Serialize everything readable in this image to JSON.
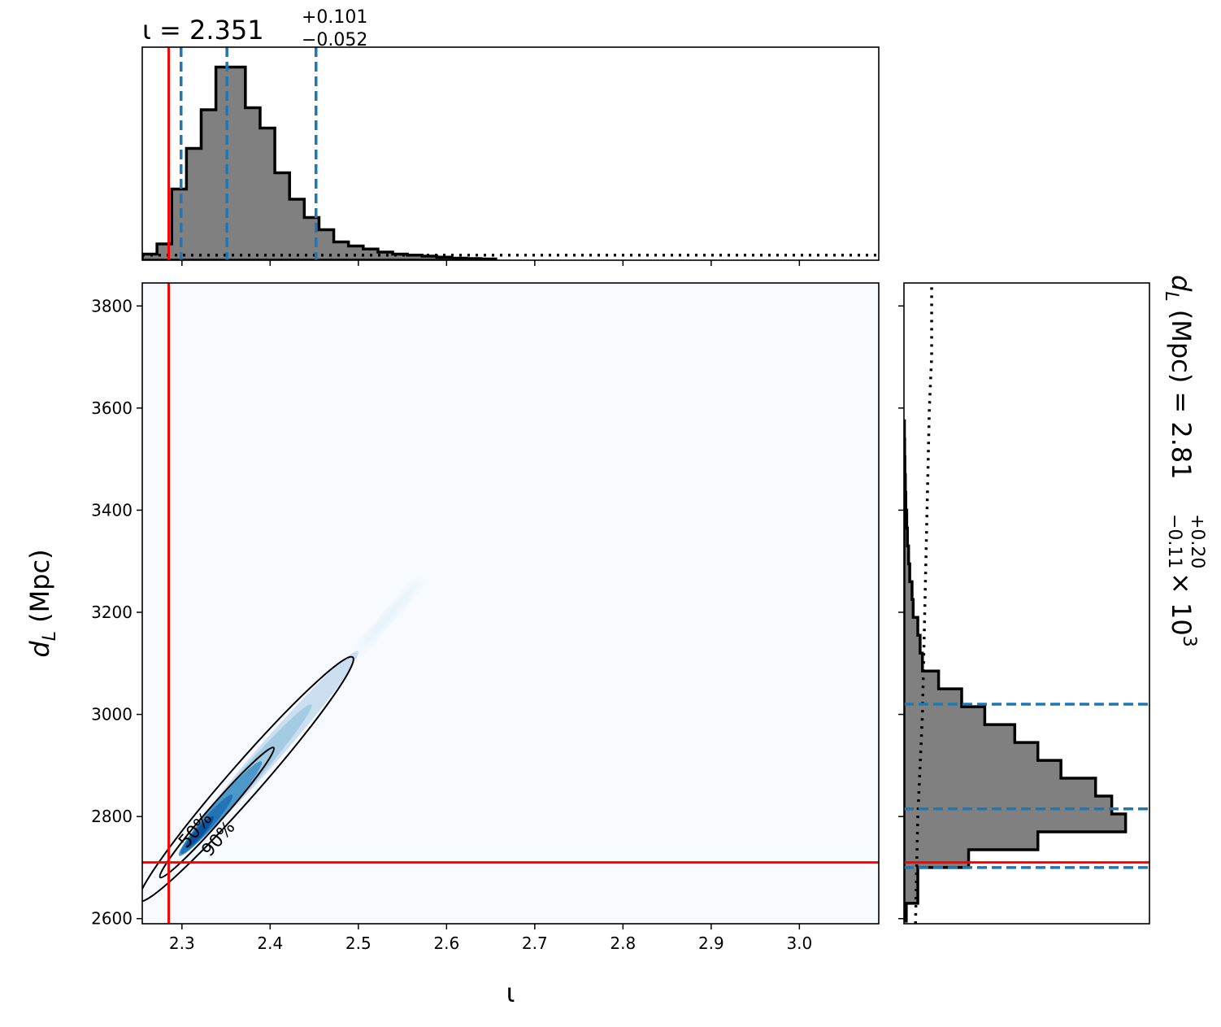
{
  "chart_data": [
    {
      "type": "histogram",
      "panel": "top-marginal",
      "title": {
        "symbol": "ι",
        "eq": " = ",
        "value": "2.351",
        "upper": "+0.101",
        "lower": "−0.052"
      },
      "xlim": [
        2.255,
        3.09
      ],
      "bins": {
        "start": 2.255,
        "width": 0.0167,
        "heights": [
          0.03,
          0.08,
          0.35,
          0.55,
          0.74,
          0.95,
          0.95,
          0.75,
          0.65,
          0.43,
          0.3,
          0.21,
          0.15,
          0.09,
          0.07,
          0.055,
          0.04,
          0.03,
          0.025,
          0.02,
          0.015,
          0.01,
          0.008,
          0.006
        ]
      },
      "prior_level": 0.025,
      "lines": {
        "truth": 2.285,
        "quantiles": [
          2.299,
          2.351,
          2.452
        ]
      },
      "colors": {
        "fill": "#808080",
        "edge": "#000000",
        "truth": "#ff0000",
        "quantile": "#1f77b4",
        "prior": "#000000"
      }
    },
    {
      "type": "heatmap",
      "panel": "joint",
      "xlabel": "ι",
      "ylabel": {
        "base": "d",
        "sub": "L",
        "rest": " (Mpc)"
      },
      "xlim": [
        2.255,
        3.09
      ],
      "ylim": [
        2590,
        3845
      ],
      "xticks": [
        "2.3",
        "2.4",
        "2.5",
        "2.6",
        "2.7",
        "2.8",
        "2.9",
        "3.0"
      ],
      "yticks": [
        "2600",
        "2800",
        "3000",
        "3200",
        "3400",
        "3600",
        "3800"
      ],
      "ridge": {
        "x0": 2.285,
        "y0": 2700,
        "x1": 2.48,
        "y1": 3085
      },
      "contours": [
        {
          "label": "50%",
          "level": 0.5
        },
        {
          "label": "90%",
          "level": 0.9
        }
      ],
      "truth": {
        "x": 2.285,
        "y": 2710
      },
      "colors": {
        "background": "#f7fbff",
        "dense": "#08519c",
        "contour": "#000000",
        "truth": "#ff0000"
      }
    },
    {
      "type": "histogram",
      "panel": "right-marginal",
      "title": {
        "base": "d",
        "sub": "L",
        "rest": " (Mpc) = 2.81",
        "upper": "+0.20",
        "lower": "−0.11",
        "times": " × 10",
        "exp": "3"
      },
      "ylim": [
        2590,
        3845
      ],
      "bins": {
        "start": 2595,
        "width": 35,
        "heights": [
          0.01,
          0.06,
          0.06,
          0.28,
          0.58,
          0.96,
          0.9,
          0.83,
          0.68,
          0.58,
          0.48,
          0.35,
          0.25,
          0.15,
          0.08,
          0.07,
          0.06,
          0.04,
          0.035,
          0.025,
          0.02,
          0.015,
          0.012,
          0.008,
          0.006,
          0.004,
          0.003,
          0.002
        ]
      },
      "prior": {
        "y": [
          2590,
          2700,
          2800,
          2900,
          3000,
          3200,
          3400,
          3600,
          3700,
          3845
        ],
        "level": [
          0.05,
          0.055,
          0.06,
          0.07,
          0.08,
          0.09,
          0.1,
          0.11,
          0.12,
          0.12
        ]
      },
      "lines": {
        "truth": 2710,
        "quantiles": [
          2700,
          2815,
          3020
        ]
      },
      "colors": {
        "fill": "#808080",
        "edge": "#000000",
        "truth": "#ff0000",
        "quantile": "#1f77b4",
        "prior": "#000000"
      }
    }
  ]
}
